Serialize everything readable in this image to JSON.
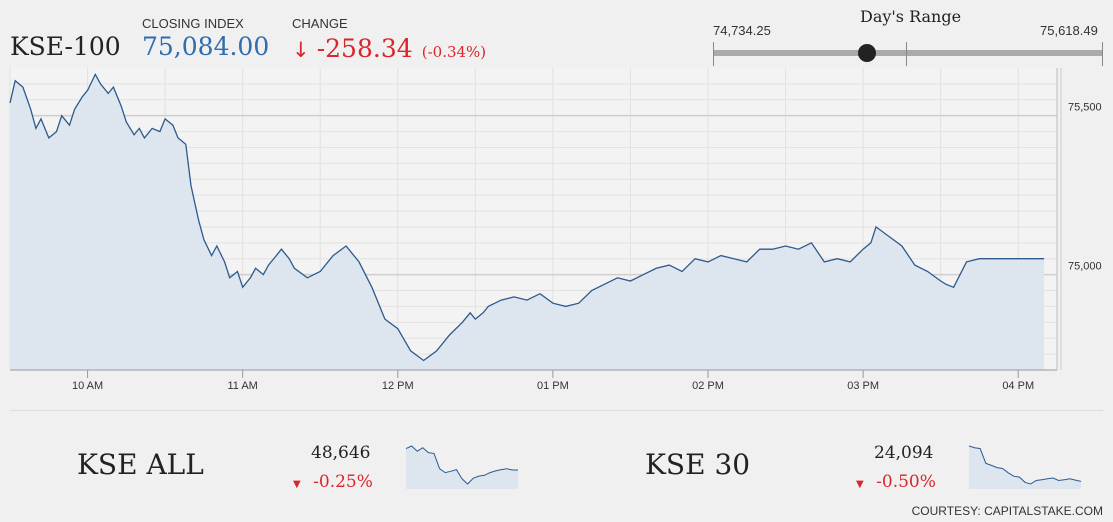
{
  "header": {
    "index_name": "KSE-100",
    "closing_label": "CLOSING INDEX",
    "closing_value": "75,084.00",
    "change_label": "CHANGE",
    "change_arrow": "↓",
    "change_value": "-258.34",
    "change_pct": "(-0.34%)"
  },
  "days_range": {
    "title": "Day's Range",
    "low": "74,734.25",
    "high": "75,618.49",
    "low_value": 74734.25,
    "high_value": 75618.49,
    "current_value": 75084.0
  },
  "colors": {
    "line": "#2d5a8e",
    "fill": "#dde6ee",
    "up": "#2f6db0",
    "down": "#d9262c"
  },
  "chart_data": [
    {
      "type": "area",
      "title": "",
      "xlabel": "",
      "ylabel": "",
      "x_ticks": [
        "10 AM",
        "11 AM",
        "12 PM",
        "01 PM",
        "02 PM",
        "03 PM",
        "04 PM"
      ],
      "y_ticks": [
        "75,500",
        "75,000"
      ],
      "ylim": [
        74700,
        75650
      ],
      "grid": true,
      "series": [
        {
          "x": [
            "9:30",
            "9:32",
            "9:35",
            "9:38",
            "9:40",
            "9:42",
            "9:45",
            "9:48",
            "9:50",
            "9:53",
            "9:55",
            "9:58",
            "10:00",
            "10:03",
            "10:05",
            "10:08",
            "10:10",
            "10:13",
            "10:15",
            "10:18",
            "10:20",
            "10:22",
            "10:25",
            "10:28",
            "10:30",
            "10:33",
            "10:35",
            "10:38",
            "10:40",
            "10:43",
            "10:45",
            "10:48",
            "10:50",
            "10:53",
            "10:55",
            "10:58",
            "11:00",
            "11:03",
            "11:05",
            "11:08",
            "11:10",
            "11:13",
            "11:15",
            "11:18",
            "11:20",
            "11:25",
            "11:30",
            "11:35",
            "11:40",
            "11:45",
            "11:50",
            "11:55",
            "12:00",
            "12:05",
            "12:10",
            "12:15",
            "12:20",
            "12:25",
            "12:28",
            "12:30",
            "12:33",
            "12:35",
            "12:40",
            "12:45",
            "12:50",
            "12:55",
            "13:00",
            "13:05",
            "13:10",
            "13:15",
            "13:20",
            "13:25",
            "13:30",
            "13:35",
            "13:40",
            "13:45",
            "13:50",
            "13:55",
            "14:00",
            "14:05",
            "14:10",
            "14:15",
            "14:20",
            "14:25",
            "14:30",
            "14:35",
            "14:40",
            "14:45",
            "14:50",
            "14:55",
            "15:00",
            "15:03",
            "15:05",
            "15:10",
            "15:15",
            "15:20",
            "15:25",
            "15:30",
            "15:32",
            "15:35",
            "15:40",
            "15:45",
            "15:50",
            "15:55",
            "16:00",
            "16:05",
            "16:10"
          ],
          "values": [
            75540,
            75610,
            75590,
            75520,
            75460,
            75490,
            75430,
            75450,
            75500,
            75470,
            75520,
            75560,
            75580,
            75630,
            75600,
            75570,
            75590,
            75530,
            75480,
            75440,
            75460,
            75430,
            75460,
            75450,
            75490,
            75470,
            75430,
            75410,
            75280,
            75170,
            75110,
            75060,
            75090,
            75040,
            74990,
            75010,
            74960,
            74990,
            75020,
            75000,
            75030,
            75060,
            75080,
            75050,
            75020,
            74990,
            75010,
            75060,
            75090,
            75040,
            74960,
            74860,
            74830,
            74760,
            74730,
            74760,
            74810,
            74850,
            74880,
            74860,
            74880,
            74900,
            74920,
            74930,
            74920,
            74940,
            74910,
            74900,
            74910,
            74950,
            74970,
            74990,
            74980,
            75000,
            75020,
            75030,
            75010,
            75050,
            75040,
            75060,
            75050,
            75040,
            75080,
            75080,
            75090,
            75080,
            75100,
            75040,
            75050,
            75040,
            75080,
            75100,
            75150,
            75120,
            75090,
            75030,
            75010,
            74980,
            74970,
            74960,
            75040,
            75050,
            75050,
            75050,
            75050,
            75050,
            75050
          ]
        }
      ]
    },
    {
      "type": "area",
      "title": "KSE ALL",
      "value": "48,646",
      "change_pct": "-0.25%",
      "series": [
        {
          "values": [
            75540,
            75600,
            75480,
            75560,
            75450,
            75430,
            75080,
            74990,
            75020,
            75060,
            74850,
            74730,
            74860,
            74910,
            74930,
            74990,
            75030,
            75060,
            75080,
            75050,
            75050
          ]
        }
      ]
    },
    {
      "type": "area",
      "title": "KSE 30",
      "value": "24,094",
      "change_pct": "-0.50%",
      "series": [
        {
          "values": [
            75600,
            75560,
            75540,
            75200,
            75150,
            75100,
            75080,
            74980,
            74900,
            74880,
            74760,
            74720,
            74800,
            74820,
            74840,
            74860,
            74800,
            74820,
            74840,
            74810,
            74780
          ]
        }
      ]
    }
  ],
  "minis": [
    {
      "name": "KSE ALL",
      "arrow": "▼"
    },
    {
      "name": "KSE 30",
      "arrow": "▼"
    }
  ],
  "courtesy": "COURTESY: CAPITALSTAKE.COM"
}
